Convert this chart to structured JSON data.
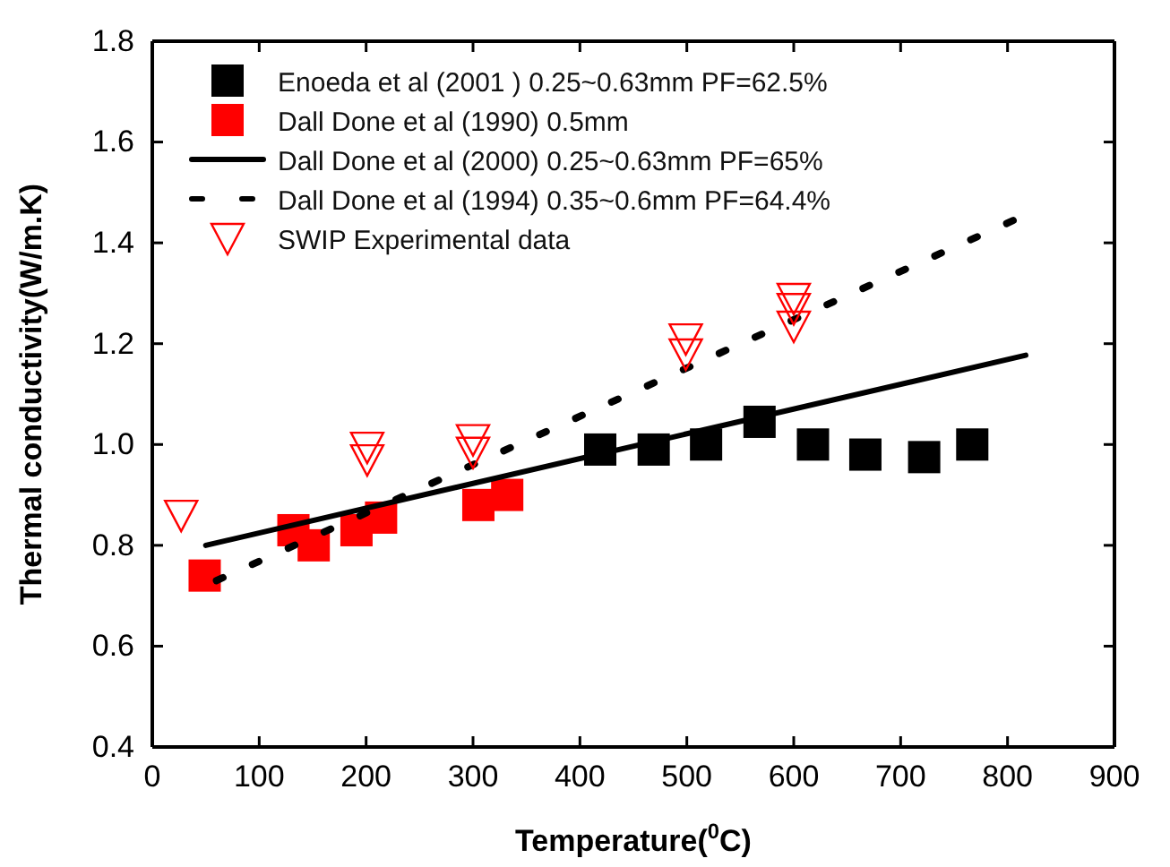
{
  "chart_data": {
    "type": "scatter",
    "xlabel": "Temperature($^{0}$C)",
    "ylabel": "Thermal conductivity(W/m.K)",
    "xlim": [
      0,
      900
    ],
    "xticks": [
      0,
      100,
      200,
      300,
      400,
      500,
      600,
      700,
      800,
      900
    ],
    "ylim": [
      0.4,
      1.8
    ],
    "yticks": [
      0.4,
      0.6,
      0.8,
      {
        "value": 1,
        "label": "1.0"
      },
      1.2,
      1.4,
      1.6,
      1.8
    ],
    "grid": false,
    "legend": "top left",
    "series": [
      {
        "name": "Enoeda et al (2001 )   0.25~0.63mm PF=62.5%",
        "marker": "square",
        "color": "#000000",
        "x": [
          419,
          469,
          518,
          568,
          618,
          667,
          722,
          767
        ],
        "values": [
          0.99,
          0.99,
          1.0,
          1.045,
          1.0,
          0.98,
          0.975,
          1.0
        ]
      },
      {
        "name": "Dall Done et al (1990) 0.5mm",
        "marker": "square",
        "color": "#ff0000",
        "x": [
          49,
          132,
          151,
          191,
          214,
          305,
          332
        ],
        "values": [
          0.74,
          0.83,
          0.8,
          0.83,
          0.855,
          0.88,
          0.9
        ]
      },
      {
        "name": "Dall Done et al (2000) 0.25~0.63mm PF=65%",
        "type": "line",
        "line_style": "solid",
        "color": "#000000",
        "x": [
          50,
          817
        ],
        "values": [
          0.8,
          1.177
        ]
      },
      {
        "name": "Dall Done et al (1994) 0.35~0.6mm PF=64.4%",
        "type": "line",
        "line_style": "dashed",
        "color": "#000000",
        "x": [
          60,
          806
        ],
        "values": [
          0.73,
          1.445
        ]
      },
      {
        "name": "SWIP Experimental data",
        "marker": "triangle",
        "color": "#ff0000",
        "x": [
          27,
          201,
          201,
          300,
          300,
          499,
          499,
          600,
          600,
          600
        ],
        "values": [
          0.86,
          0.995,
          0.97,
          1.01,
          0.985,
          1.21,
          1.18,
          1.29,
          1.27,
          1.235
        ]
      }
    ]
  }
}
